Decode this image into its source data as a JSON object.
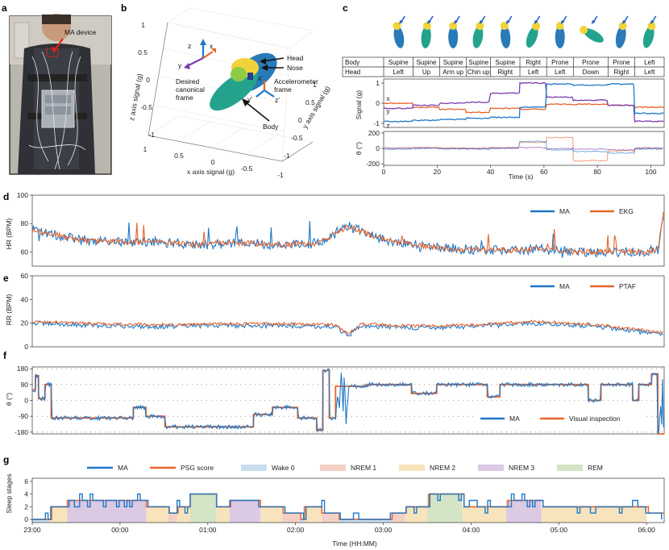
{
  "panels": {
    "a": {
      "label": "a",
      "device_label": "MA device"
    },
    "b": {
      "label": "b",
      "axis_x_label": "x axis signal (g)",
      "axis_y_label": "y axis signal (g)",
      "axis_z_label": "z axis signal (g)",
      "x_ticks": [
        "1",
        "0.5",
        "0",
        "-0.5",
        "-1"
      ],
      "y_ticks": [
        "-1",
        "-0.5",
        "0",
        "0.5",
        "1"
      ],
      "z_ticks": [
        "1",
        "0.5",
        "0",
        "-0.5",
        "-1"
      ],
      "annotations": {
        "head": "Head",
        "nose": "Nose",
        "accel_frame_1": "Accelerometer",
        "accel_frame_2": "frame",
        "canon_1": "Desired",
        "canon_2": "canonical",
        "canon_3": "frame",
        "body": "Body"
      },
      "frame_axes": {
        "x": "x",
        "y": "y",
        "z": "z",
        "xp": "x'",
        "yp": "y'",
        "zp": "z'"
      },
      "colors": {
        "x": "#e8642a",
        "y": "#7a3fb0",
        "z": "#1f78c8"
      }
    }
  },
  "chart_data": [
    {
      "id": "c",
      "label": "c",
      "type": "line",
      "table": {
        "row_labels": [
          "Body",
          "Head"
        ],
        "body": [
          "Supine",
          "Supine",
          "Supine",
          "Supine",
          "Supine",
          "Right",
          "Prone",
          "Prone",
          "Prone",
          "Left"
        ],
        "head": [
          "Left",
          "Up",
          "Arm up",
          "Chin up",
          "Right",
          "Left",
          "Left",
          "Down",
          "Right",
          "Left"
        ],
        "segment_starts": [
          0,
          11,
          21,
          31,
          40,
          51,
          61,
          71,
          84,
          94
        ]
      },
      "top": {
        "ylabel": "Signal (g)",
        "ylim": [
          -1.2,
          1.2
        ],
        "yticks": [
          "1",
          "0",
          "-1"
        ],
        "series": [
          {
            "name": "x",
            "color": "#e8642a",
            "levels": [
              0.0,
              -0.2,
              -0.3,
              -0.45,
              -0.25,
              -0.3,
              -0.05,
              -0.05,
              -0.1,
              -0.2
            ]
          },
          {
            "name": "y",
            "color": "#7a3fb0",
            "levels": [
              -0.25,
              -0.1,
              0.0,
              0.05,
              0.5,
              1.0,
              0.3,
              0.15,
              -0.1,
              -0.9
            ]
          },
          {
            "name": "z",
            "color": "#1f78c8",
            "levels": [
              -0.9,
              -0.85,
              -0.8,
              -0.75,
              -0.7,
              -0.2,
              0.95,
              0.9,
              0.95,
              -0.5
            ]
          }
        ]
      },
      "bottom": {
        "ylabel": "θ (°)",
        "ylim": [
          -220,
          220
        ],
        "yticks": [
          "200",
          "0",
          "-200"
        ],
        "series": [
          {
            "name": "θ1",
            "color": "#e8642a",
            "levels": [
              0,
              10,
              5,
              0,
              10,
              80,
              140,
              -160,
              -30,
              0
            ]
          },
          {
            "name": "θ2",
            "color": "#1f78c8",
            "levels": [
              -10,
              0,
              -5,
              -10,
              0,
              90,
              -20,
              -40,
              -60,
              -10
            ]
          },
          {
            "name": "θ3",
            "color": "#7a3fb0",
            "levels": [
              5,
              5,
              0,
              0,
              5,
              10,
              0,
              -10,
              -20,
              5
            ]
          }
        ]
      },
      "xlabel": "Time (s)",
      "xlim": [
        0,
        105
      ],
      "xticks": [
        "0",
        "20",
        "40",
        "60",
        "80",
        "100"
      ]
    },
    {
      "id": "d",
      "label": "d",
      "type": "line",
      "ylabel": "HR (BPM)",
      "ylim": [
        50,
        100
      ],
      "yticks": [
        "100",
        "80",
        "60"
      ],
      "series": [
        {
          "name": "MA",
          "color": "#1f78c8"
        },
        {
          "name": "EKG",
          "color": "#e8642a"
        }
      ],
      "trend": [
        [
          0,
          75
        ],
        [
          4,
          72
        ],
        [
          8,
          68
        ],
        [
          14,
          67
        ],
        [
          20,
          67
        ],
        [
          26,
          65
        ],
        [
          30,
          66
        ],
        [
          34,
          66
        ],
        [
          40,
          65
        ],
        [
          45,
          66
        ],
        [
          50,
          78
        ],
        [
          56,
          68
        ],
        [
          62,
          64
        ],
        [
          68,
          62
        ],
        [
          74,
          61
        ],
        [
          80,
          62
        ],
        [
          86,
          60
        ],
        [
          92,
          60
        ],
        [
          97,
          60
        ],
        [
          99,
          62
        ],
        [
          100,
          90
        ]
      ]
    },
    {
      "id": "e",
      "label": "e",
      "type": "line",
      "ylabel": "RR (BPM)",
      "ylim": [
        0,
        60
      ],
      "yticks": [
        "60",
        "40",
        "20",
        "0"
      ],
      "series": [
        {
          "name": "MA",
          "color": "#1f78c8"
        },
        {
          "name": "PTAF",
          "color": "#e8642a"
        }
      ],
      "trend": [
        [
          0,
          20
        ],
        [
          10,
          18
        ],
        [
          20,
          17
        ],
        [
          30,
          18
        ],
        [
          40,
          18
        ],
        [
          48,
          17
        ],
        [
          50,
          9
        ],
        [
          52,
          18
        ],
        [
          60,
          16
        ],
        [
          70,
          17
        ],
        [
          80,
          20
        ],
        [
          90,
          17
        ],
        [
          100,
          10
        ]
      ]
    },
    {
      "id": "f",
      "label": "f",
      "type": "line",
      "ylabel": "θ (°)",
      "ylim": [
        -190,
        190
      ],
      "yticks": [
        "180",
        "90",
        "0",
        "-90",
        "-180"
      ],
      "series": [
        {
          "name": "MA",
          "color": "#1f78c8"
        },
        {
          "name": "Visual inspection",
          "color": "#e8642a"
        }
      ],
      "steps": [
        [
          0,
          60
        ],
        [
          0.5,
          140
        ],
        [
          1,
          10
        ],
        [
          2,
          90
        ],
        [
          3,
          -100
        ],
        [
          15,
          -100
        ],
        [
          16,
          -40
        ],
        [
          18,
          -90
        ],
        [
          21,
          -150
        ],
        [
          34,
          -150
        ],
        [
          35,
          -80
        ],
        [
          38,
          -40
        ],
        [
          42,
          -100
        ],
        [
          45,
          -170
        ],
        [
          46,
          170
        ],
        [
          47,
          -100
        ],
        [
          48,
          80
        ],
        [
          53,
          90
        ],
        [
          60,
          40
        ],
        [
          64,
          90
        ],
        [
          72,
          20
        ],
        [
          74,
          90
        ],
        [
          86,
          90
        ],
        [
          88,
          0
        ],
        [
          90,
          90
        ],
        [
          94,
          90
        ],
        [
          95,
          0
        ],
        [
          96,
          90
        ],
        [
          98,
          150
        ],
        [
          99,
          -190
        ]
      ]
    },
    {
      "id": "g",
      "label": "g",
      "type": "line",
      "ylabel": "Sleep stages",
      "ylim": [
        -0.5,
        6.5
      ],
      "yticks": [
        "6",
        "4",
        "2",
        "0"
      ],
      "xlabel": "Time (HH:MM)",
      "xticks": [
        "23:00",
        "00:00",
        "01:00",
        "02:00",
        "03:00",
        "04:00",
        "05:00",
        "06:00"
      ],
      "series": [
        {
          "name": "MA",
          "color": "#1f78c8"
        },
        {
          "name": "PSG score",
          "color": "#e8642a"
        }
      ],
      "legend_stages": [
        {
          "name": "Wake 0",
          "color": "#c9ddef"
        },
        {
          "name": "NREM 1",
          "color": "#f4cfc4"
        },
        {
          "name": "NREM 2",
          "color": "#f7e4bd"
        },
        {
          "name": "NREM 3",
          "color": "#dcc9e4"
        },
        {
          "name": "REM",
          "color": "#d4e4c6"
        }
      ],
      "hypnogram": [
        [
          0,
          0
        ],
        [
          0.2,
          2
        ],
        [
          0.4,
          3
        ],
        [
          1.3,
          2
        ],
        [
          1.55,
          1
        ],
        [
          1.65,
          2
        ],
        [
          1.8,
          4
        ],
        [
          2.1,
          2
        ],
        [
          2.25,
          3
        ],
        [
          2.6,
          2
        ],
        [
          2.85,
          1
        ],
        [
          3.05,
          0
        ],
        [
          3.1,
          2
        ],
        [
          3.3,
          1
        ],
        [
          3.5,
          0
        ],
        [
          4.1,
          1
        ],
        [
          4.25,
          2
        ],
        [
          4.5,
          4
        ],
        [
          4.9,
          2
        ],
        [
          5.4,
          3
        ],
        [
          5.8,
          2
        ],
        [
          6.1,
          2
        ],
        [
          7.0,
          1
        ]
      ]
    }
  ]
}
